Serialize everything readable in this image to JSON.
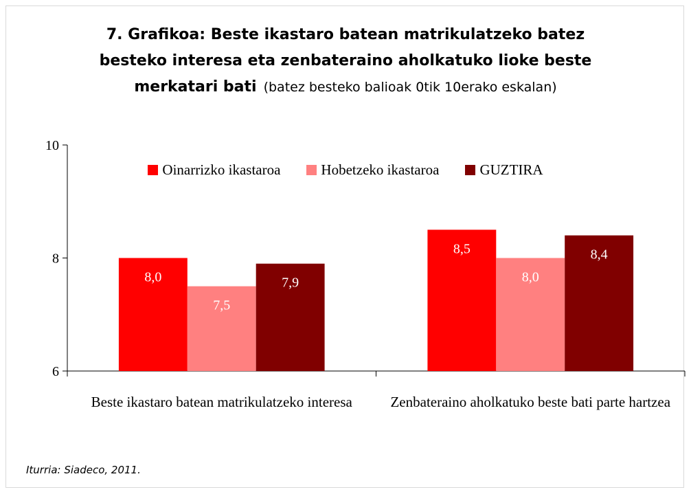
{
  "chart_data": {
    "type": "bar",
    "title": "7. Grafikoa: Beste ikastaro batean matrikulatzeko batez besteko interesa eta zenbateraino aholkatuko lioke beste merkatari bati",
    "subtitle": "(batez besteko balioak 0tik 10erako eskalan)",
    "categories": [
      "Beste ikastaro batean matrikulatzeko interesa",
      "Zenbateraino aholkatuko beste bati parte hartzea"
    ],
    "series": [
      {
        "name": "Oinarrizko ikastaroa",
        "color": "#ff0000",
        "values": [
          8.0,
          8.5
        ],
        "value_labels": [
          "8,0",
          "8,5"
        ]
      },
      {
        "name": "Hobetzeko ikastaroa",
        "color": "#ff8080",
        "values": [
          7.5,
          8.0
        ],
        "value_labels": [
          "7,5",
          "8,0"
        ]
      },
      {
        "name": "GUZTIRA",
        "color": "#800000",
        "values": [
          7.9,
          8.4
        ],
        "value_labels": [
          "7,9",
          "8,4"
        ]
      }
    ],
    "ylim": [
      6,
      10
    ],
    "yticks": [
      6,
      8,
      10
    ],
    "legend": "top",
    "source": "Iturria: Siadeco, 2011."
  }
}
